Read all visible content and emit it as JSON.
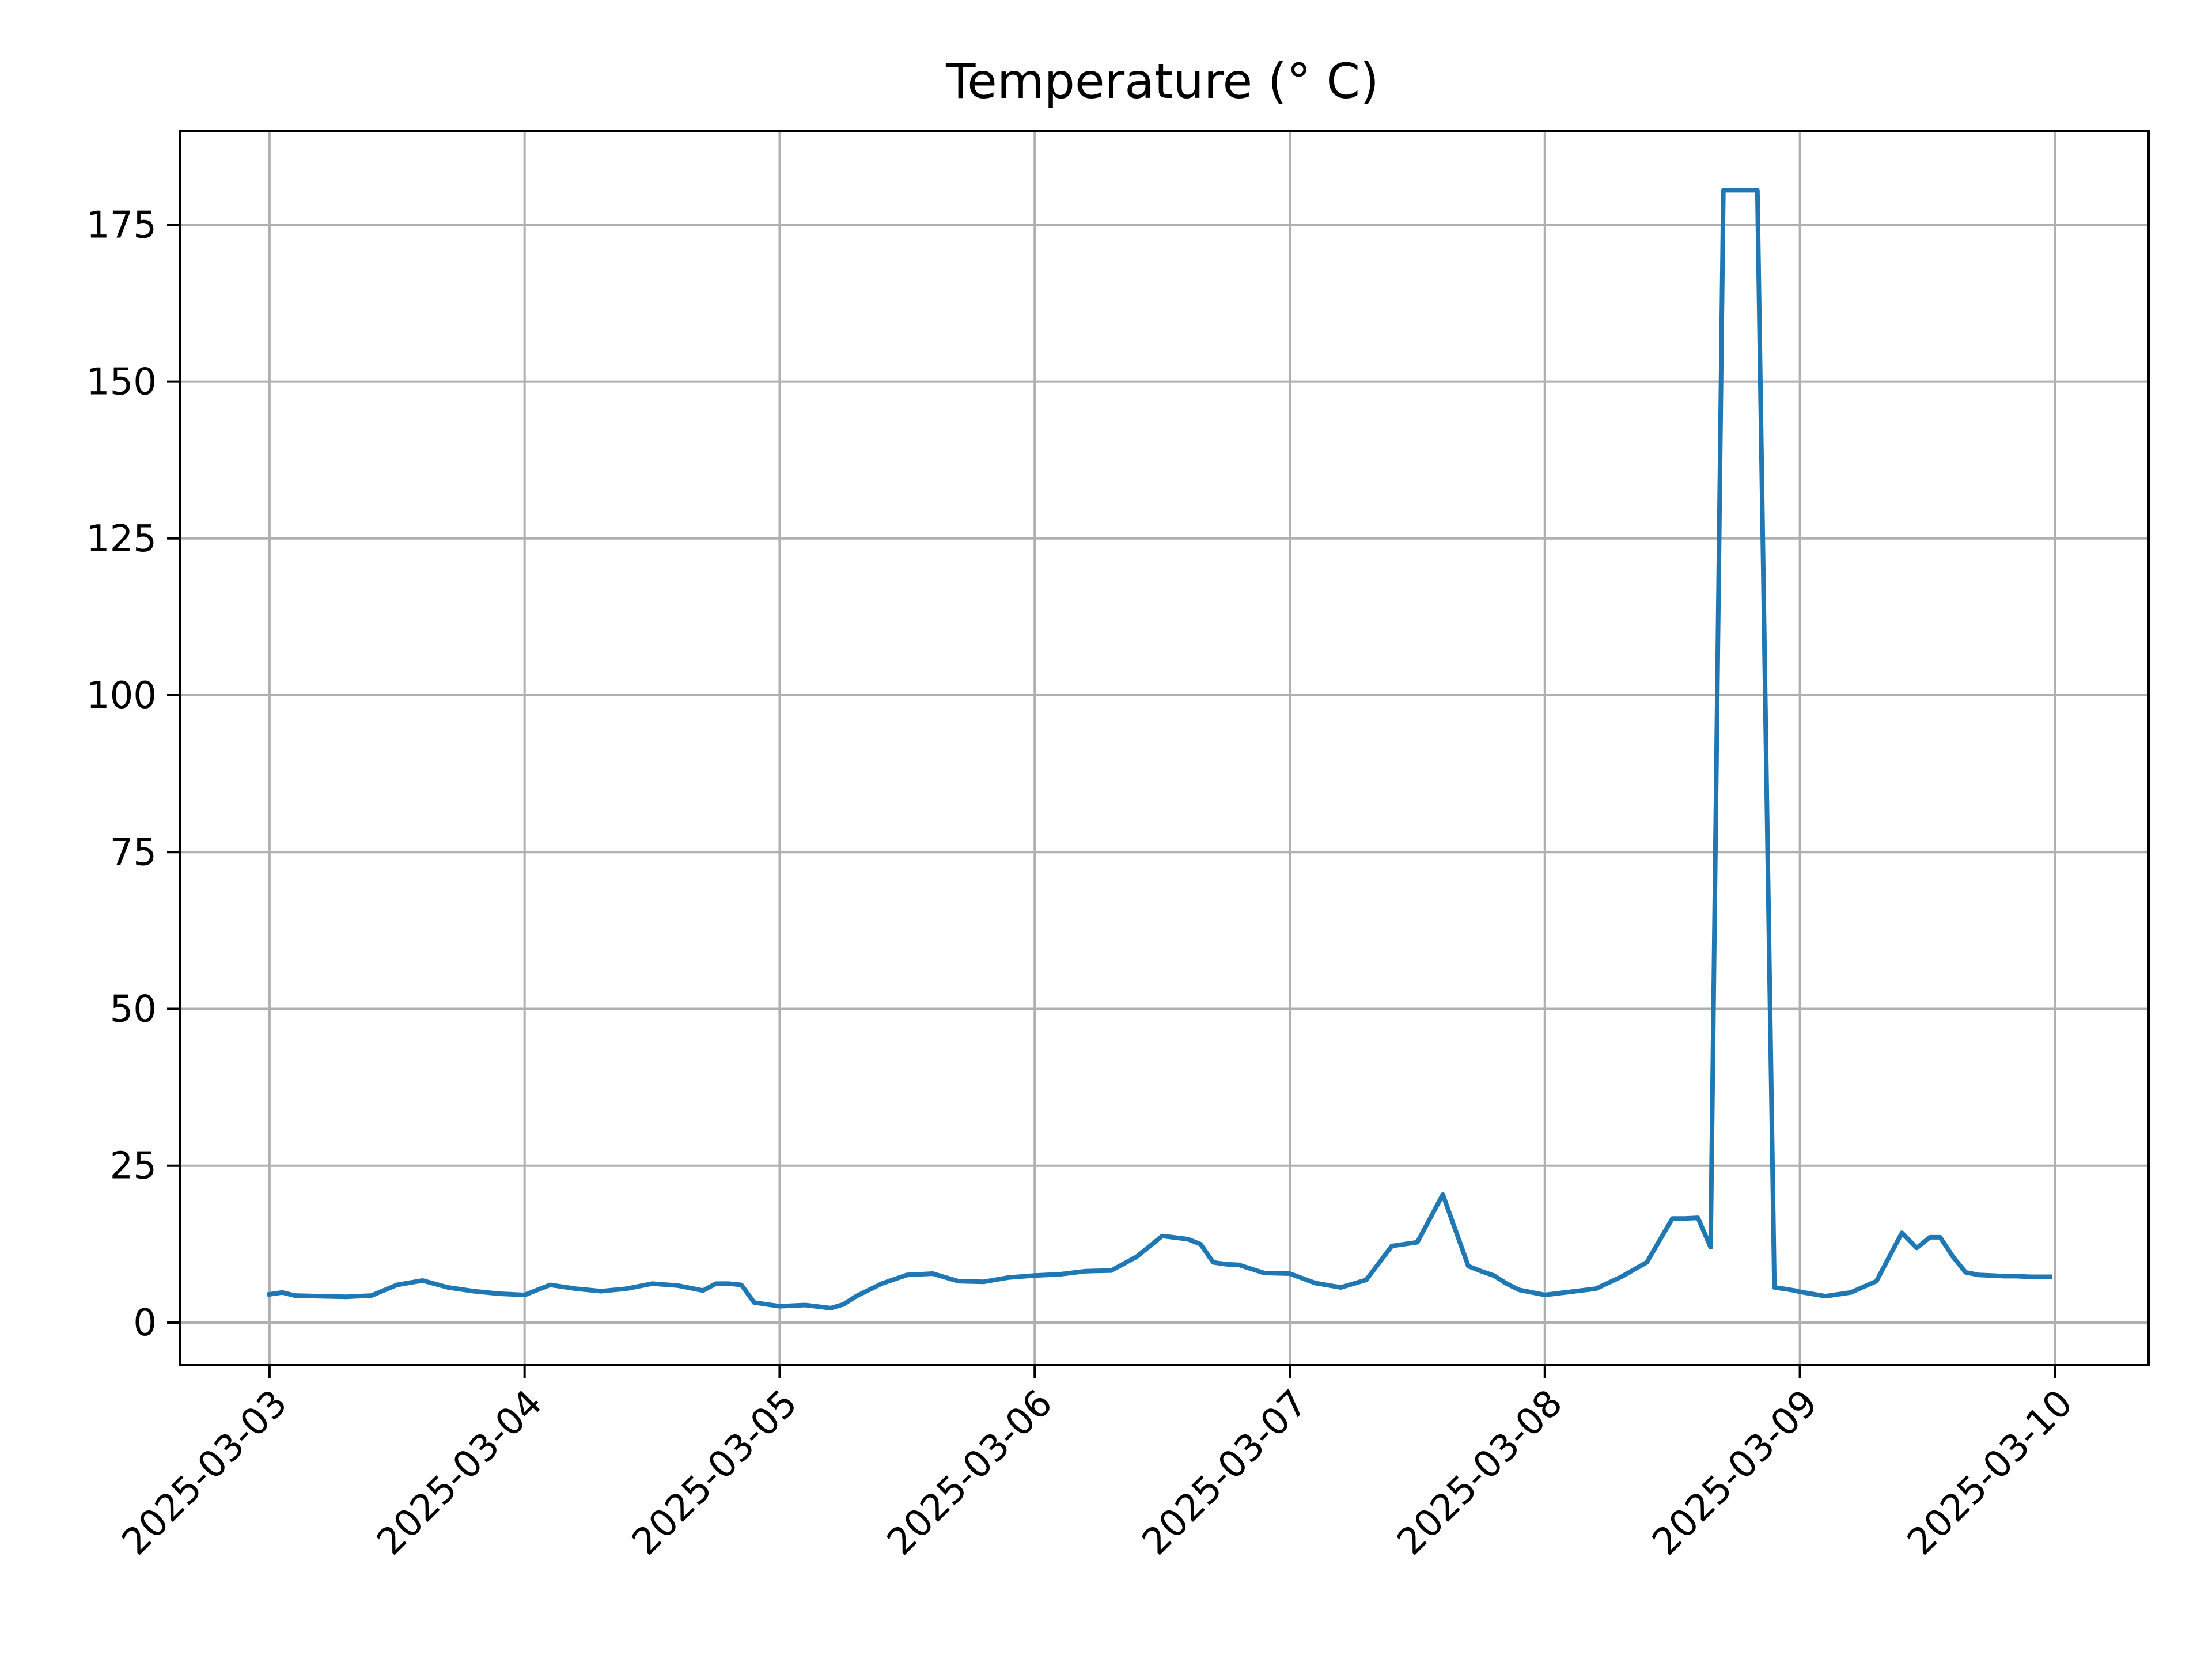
{
  "chart_data": {
    "type": "line",
    "title": "Temperature (° C)",
    "xlabel": "",
    "ylabel": "",
    "grid": true,
    "legend": "none",
    "series_color": "#1f77b4",
    "x_tick_labels": [
      "2025-03-03",
      "2025-03-04",
      "2025-03-05",
      "2025-03-06",
      "2025-03-07",
      "2025-03-08",
      "2025-03-09",
      "2025-03-10"
    ],
    "y_tick_labels": [
      "0",
      "25",
      "50",
      "75",
      "100",
      "125",
      "150",
      "175"
    ],
    "y_ticks": [
      0,
      25,
      50,
      75,
      100,
      125,
      150,
      175
    ],
    "xlim": [
      "2025-03-02 15:33",
      "2025-03-10 08:49"
    ],
    "ylim": [
      -6.8,
      190
    ],
    "series": [
      {
        "x": [
          "2025-03-03 00:00",
          "2025-03-03 01:12",
          "2025-03-03 02:24",
          "2025-03-03 04:48",
          "2025-03-03 07:12",
          "2025-03-03 09:36",
          "2025-03-03 12:00",
          "2025-03-03 14:24",
          "2025-03-03 16:48",
          "2025-03-03 19:12",
          "2025-03-03 21:36",
          "2025-03-04 00:00",
          "2025-03-04 02:24",
          "2025-03-04 04:48",
          "2025-03-04 07:12",
          "2025-03-04 09:36",
          "2025-03-04 12:00",
          "2025-03-04 14:24",
          "2025-03-04 16:48",
          "2025-03-04 18:00",
          "2025-03-04 19:12",
          "2025-03-04 20:24",
          "2025-03-04 21:36",
          "2025-03-04 22:48",
          "2025-03-05 00:00",
          "2025-03-05 02:24",
          "2025-03-05 04:48",
          "2025-03-05 06:00",
          "2025-03-05 07:12",
          "2025-03-05 09:36",
          "2025-03-05 12:00",
          "2025-03-05 14:24",
          "2025-03-05 16:48",
          "2025-03-05 19:12",
          "2025-03-05 21:36",
          "2025-03-06 00:00",
          "2025-03-06 02:24",
          "2025-03-06 04:48",
          "2025-03-06 07:12",
          "2025-03-06 09:36",
          "2025-03-06 12:00",
          "2025-03-06 14:24",
          "2025-03-06 15:36",
          "2025-03-06 16:48",
          "2025-03-06 18:00",
          "2025-03-06 19:12",
          "2025-03-06 21:36",
          "2025-03-07 00:00",
          "2025-03-07 02:24",
          "2025-03-07 04:48",
          "2025-03-07 07:12",
          "2025-03-07 09:36",
          "2025-03-07 12:00",
          "2025-03-07 14:24",
          "2025-03-07 16:48",
          "2025-03-07 18:00",
          "2025-03-07 19:12",
          "2025-03-07 20:24",
          "2025-03-07 21:36",
          "2025-03-08 00:00",
          "2025-03-08 02:24",
          "2025-03-08 04:48",
          "2025-03-08 07:12",
          "2025-03-08 09:36",
          "2025-03-08 12:00",
          "2025-03-08 13:12",
          "2025-03-08 14:24",
          "2025-03-08 15:36",
          "2025-03-08 16:48",
          "2025-03-08 18:00",
          "2025-03-08 19:12",
          "2025-03-08 20:00",
          "2025-03-08 21:36",
          "2025-03-08 22:48",
          "2025-03-08 23:31",
          "2025-03-09 00:00",
          "2025-03-09 02:24",
          "2025-03-09 04:48",
          "2025-03-09 07:12",
          "2025-03-09 09:36",
          "2025-03-09 11:00",
          "2025-03-09 12:14",
          "2025-03-09 13:12",
          "2025-03-09 14:24",
          "2025-03-09 15:36",
          "2025-03-09 16:48",
          "2025-03-09 18:00",
          "2025-03-09 19:12",
          "2025-03-09 20:24",
          "2025-03-09 21:36",
          "2025-03-09 23:31"
        ],
        "values": [
          4.5,
          4.8,
          4.3,
          4.2,
          4.1,
          4.3,
          6.0,
          6.7,
          5.6,
          5.0,
          4.6,
          4.4,
          6.0,
          5.4,
          5.0,
          5.4,
          6.2,
          5.9,
          5.1,
          6.2,
          6.2,
          6.0,
          3.2,
          2.9,
          2.6,
          2.8,
          2.3,
          2.9,
          4.2,
          6.2,
          7.6,
          7.8,
          6.6,
          6.5,
          7.2,
          7.5,
          7.7,
          8.2,
          8.3,
          10.5,
          13.8,
          13.3,
          12.5,
          9.6,
          9.3,
          9.2,
          7.9,
          7.8,
          6.3,
          5.6,
          6.8,
          12.2,
          12.8,
          20.4,
          9.0,
          8.2,
          7.5,
          6.2,
          5.2,
          4.4,
          4.9,
          5.4,
          7.3,
          9.6,
          16.6,
          16.6,
          16.7,
          12.0,
          180.5,
          180.5,
          180.5,
          180.5,
          5.6,
          5.3,
          5.1,
          4.9,
          4.2,
          4.8,
          6.6,
          14.3,
          11.9,
          13.6,
          13.6,
          10.5,
          8.0,
          7.6,
          7.5,
          7.4,
          7.4,
          7.3,
          7.3
        ]
      }
    ]
  }
}
